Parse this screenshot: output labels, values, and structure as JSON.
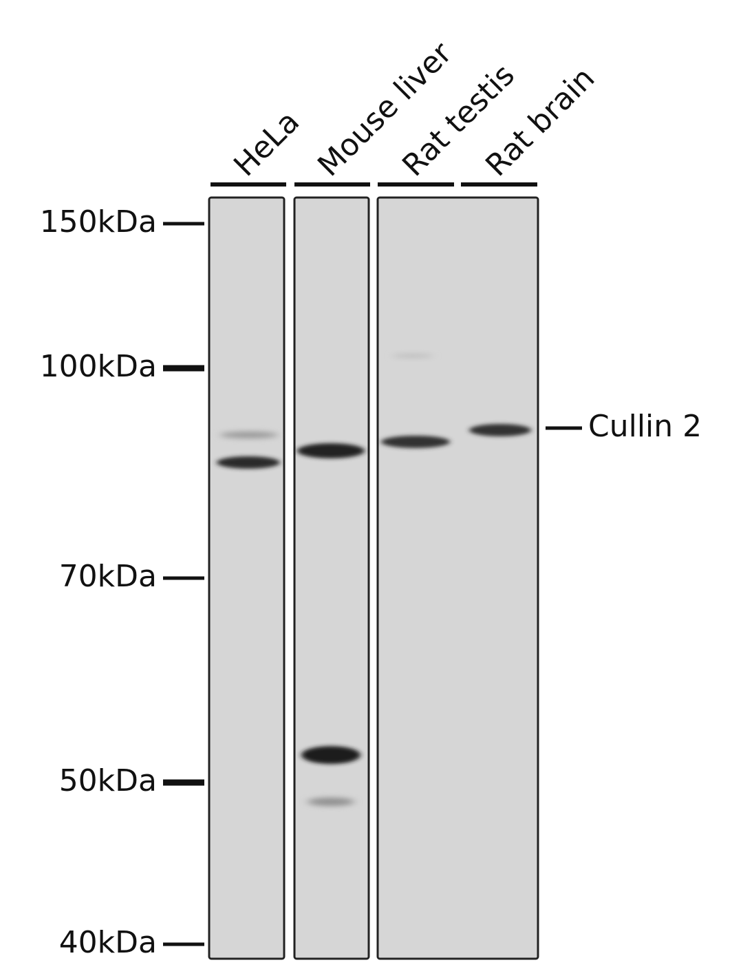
{
  "lanes": [
    "HeLa",
    "Mouse liver",
    "Rat testis",
    "Rat brain"
  ],
  "markers": [
    "150kDa",
    "100kDa",
    "70kDa",
    "50kDa",
    "40kDa"
  ],
  "band_label": "Cullin 2"
}
